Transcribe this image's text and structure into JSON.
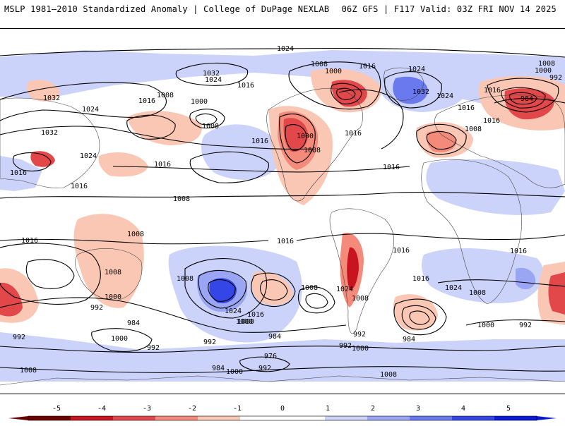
{
  "header": {
    "left_title": "MSLP 1981–2010 Standardized Anomaly | College of DuPage NEXLAB",
    "right_title": "06Z GFS | F117 Valid: 03Z FRI NOV 14 2025"
  },
  "colorbar": {
    "ticks": [
      "-5",
      "-4",
      "-3",
      "-2",
      "-1",
      "0",
      "1",
      "2",
      "3",
      "4",
      "5"
    ],
    "colors": {
      "neg5": "#6b0000",
      "neg4": "#c8141e",
      "neg3": "#e2474a",
      "neg2": "#f38a7a",
      "neg1": "#fbc7b5",
      "zero": "#ffffff",
      "pos1": "#ccd3fb",
      "pos2": "#9aa6f4",
      "pos3": "#6b79ee",
      "pos4": "#3446e6",
      "pos5": "#0a1bd6"
    }
  },
  "isobar_labels": [
    "1024",
    "1008",
    "1000",
    "1016",
    "1024",
    "992",
    "1008",
    "1000",
    "1032",
    "1024",
    "1016",
    "1032",
    "984",
    "1016",
    "1016",
    "1008",
    "1032",
    "1016",
    "1024",
    "1000",
    "1008",
    "1016",
    "1032",
    "1024",
    "1016",
    "1008",
    "1016",
    "1024",
    "1016",
    "1008",
    "1016",
    "1016",
    "1000",
    "1008",
    "1016",
    "1016",
    "1008",
    "1016",
    "1016",
    "1024",
    "1008",
    "1000",
    "1008",
    "992",
    "1024",
    "1008",
    "1016",
    "1000",
    "984",
    "992",
    "992",
    "1016",
    "1016",
    "1008",
    "1024",
    "1008",
    "1000",
    "992",
    "1000",
    "984",
    "992",
    "984",
    "992",
    "1000",
    "992",
    "976",
    "1000",
    "984",
    "992",
    "1008",
    "1008",
    "1000"
  ]
}
